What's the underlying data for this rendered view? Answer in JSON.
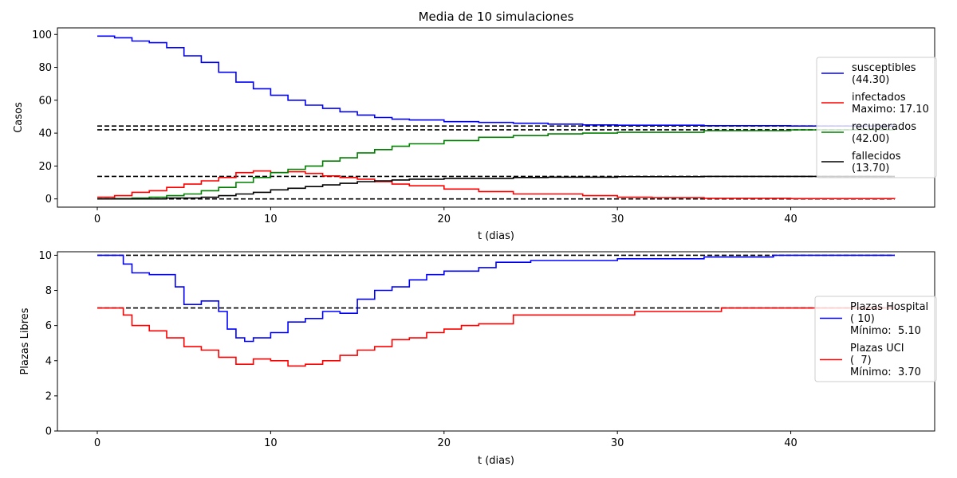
{
  "chart_data": [
    {
      "type": "line",
      "title": "Media de 10 simulaciones",
      "xlabel": "t (dias)",
      "ylabel": "Casos",
      "xlim": [
        -2.3,
        48.3
      ],
      "ylim": [
        -5,
        104
      ],
      "xticks": [
        0,
        10,
        20,
        30,
        40
      ],
      "yticks": [
        0,
        20,
        40,
        60,
        80,
        100
      ],
      "grid": false,
      "legend_position": "right",
      "series": [
        {
          "name": "susceptibles",
          "legend_lines": [
            "susceptibles",
            "(44.30)"
          ],
          "color": "#0000ff",
          "x": [
            0,
            1,
            2,
            3,
            4,
            5,
            6,
            7,
            8,
            9,
            10,
            11,
            12,
            13,
            14,
            15,
            16,
            17,
            18,
            20,
            22,
            24,
            26,
            28,
            30,
            35,
            40,
            46
          ],
          "y": [
            99,
            98,
            96,
            95,
            92,
            87,
            83,
            77,
            71,
            67,
            63,
            60,
            57,
            55,
            53,
            51,
            49.5,
            48.5,
            48,
            47,
            46.5,
            46,
            45.5,
            45,
            44.8,
            44.5,
            44.3,
            44.3
          ]
        },
        {
          "name": "infectados",
          "legend_lines": [
            "infectados",
            "Maximo: 17.10"
          ],
          "color": "#ff0000",
          "x": [
            0,
            1,
            2,
            3,
            4,
            5,
            6,
            7,
            8,
            9,
            10,
            11,
            12,
            13,
            14,
            15,
            16,
            17,
            18,
            20,
            22,
            24,
            26,
            28,
            30,
            32,
            35,
            40,
            46
          ],
          "y": [
            1,
            2,
            4,
            5,
            7,
            9,
            11,
            13,
            16,
            17,
            16,
            16.5,
            15.5,
            14,
            13,
            12,
            10.5,
            9,
            8,
            6,
            4.5,
            3,
            3,
            2,
            1,
            0.8,
            0.4,
            0.2,
            0.1
          ]
        },
        {
          "name": "recuperados",
          "legend_lines": [
            "recuperados",
            "(42.00)"
          ],
          "color": "#008000",
          "x": [
            0,
            1,
            2,
            3,
            4,
            5,
            6,
            7,
            8,
            9,
            10,
            11,
            12,
            13,
            14,
            15,
            16,
            17,
            18,
            20,
            22,
            24,
            26,
            28,
            30,
            35,
            40,
            46
          ],
          "y": [
            0,
            0.2,
            0.5,
            1,
            2,
            3,
            5,
            7,
            10,
            13,
            16,
            18,
            20,
            23,
            25,
            28,
            30,
            32,
            33.5,
            35.5,
            37.5,
            38.5,
            39.5,
            40,
            40.5,
            41.5,
            42,
            42
          ]
        },
        {
          "name": "fallecidos",
          "legend_lines": [
            "fallecidos",
            "(13.70)"
          ],
          "color": "#000000",
          "x": [
            0,
            2,
            4,
            6,
            7,
            8,
            9,
            10,
            11,
            12,
            13,
            14,
            15,
            16,
            17,
            18,
            20,
            22,
            24,
            26,
            30,
            35,
            40,
            46
          ],
          "y": [
            0,
            0,
            0.5,
            1,
            2,
            3,
            4,
            5.5,
            6.5,
            7.5,
            8.5,
            9.5,
            10.5,
            11,
            11.5,
            12,
            12.5,
            12.5,
            13,
            13.2,
            13.5,
            13.7,
            13.7,
            13.7
          ]
        }
      ],
      "reference_lines": [
        44.3,
        42,
        13.7,
        0
      ],
      "reference_line_style": "dashed black"
    },
    {
      "type": "line",
      "xlabel": "t (dias)",
      "ylabel": "Plazas Libres",
      "xlim": [
        -2.3,
        48.3
      ],
      "ylim": [
        0,
        10.2
      ],
      "xticks": [
        0,
        10,
        20,
        30,
        40
      ],
      "yticks": [
        0,
        2,
        4,
        6,
        8,
        10
      ],
      "grid": false,
      "legend_position": "right",
      "series": [
        {
          "name": "Plazas Hospital",
          "legend_lines": [
            "Plazas Hospital",
            "( 10)",
            "Mínimo:  5.10"
          ],
          "color": "#0000ff",
          "x": [
            0,
            1,
            1.5,
            2,
            3,
            4,
            4.5,
            5,
            6,
            7,
            7.5,
            8,
            8.5,
            9,
            10,
            11,
            12,
            13,
            14,
            15,
            16,
            17,
            18,
            19,
            20,
            22,
            23,
            25,
            28,
            30,
            35,
            39,
            46
          ],
          "y": [
            10,
            10,
            9.5,
            9,
            8.9,
            8.9,
            8.2,
            7.2,
            7.4,
            6.8,
            5.8,
            5.3,
            5.1,
            5.3,
            5.6,
            6.2,
            6.4,
            6.8,
            6.7,
            7.5,
            8,
            8.2,
            8.6,
            8.9,
            9.1,
            9.3,
            9.6,
            9.7,
            9.7,
            9.8,
            9.9,
            10,
            10
          ]
        },
        {
          "name": "Plazas UCI",
          "legend_lines": [
            "Plazas UCI",
            "(  7)",
            "Mínimo:  3.70"
          ],
          "color": "#ff0000",
          "x": [
            0,
            1,
            1.5,
            2,
            3,
            4,
            5,
            6,
            7,
            8,
            9,
            10,
            11,
            12,
            13,
            14,
            15,
            16,
            17,
            18,
            19,
            20,
            21,
            22,
            24,
            26,
            28,
            29.5,
            31,
            33,
            36,
            40,
            46
          ],
          "y": [
            7,
            7,
            6.6,
            6,
            5.7,
            5.3,
            4.8,
            4.6,
            4.2,
            3.8,
            4.1,
            4,
            3.7,
            3.8,
            4,
            4.3,
            4.6,
            4.8,
            5.2,
            5.3,
            5.6,
            5.8,
            6,
            6.1,
            6.6,
            6.6,
            6.6,
            6.6,
            6.8,
            6.8,
            7,
            7,
            7
          ]
        }
      ],
      "reference_lines": [
        10,
        7
      ],
      "reference_line_style": "dashed black"
    }
  ]
}
